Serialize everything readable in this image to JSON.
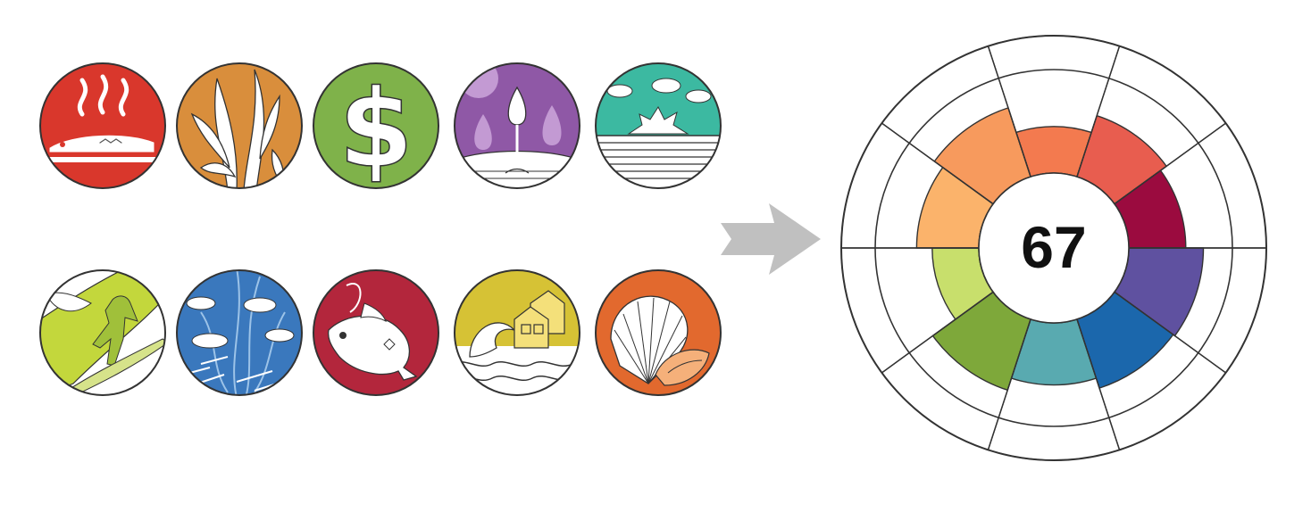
{
  "icons_row1": [
    {
      "name": "food-provision-icon",
      "color": "#d9372c"
    },
    {
      "name": "natural-products-icon",
      "color": "#d98e3c"
    },
    {
      "name": "coastal-economies-icon",
      "color": "#7fb24a"
    },
    {
      "name": "carbon-storage-icon",
      "color": "#8f58a6"
    },
    {
      "name": "clean-waters-icon",
      "color": "#3cb9a1"
    }
  ],
  "icons_row2": [
    {
      "name": "tourism-recreation-icon",
      "color": "#c3d73c"
    },
    {
      "name": "biodiversity-icon",
      "color": "#3a78bd"
    },
    {
      "name": "artisanal-fishing-icon",
      "color": "#b3263c"
    },
    {
      "name": "coastal-protection-icon",
      "color": "#d6c235"
    },
    {
      "name": "sense-of-place-icon",
      "color": "#e2692e"
    }
  ],
  "arrow_color": "#c0c0c0",
  "flower": {
    "score": "67",
    "petals": [
      {
        "color": "#f37a4f",
        "level": 0.45
      },
      {
        "color": "#e85d4f",
        "level": 0.62
      },
      {
        "color": "#9b0b3f",
        "level": 0.55
      },
      {
        "color": "#5f51a0",
        "level": 0.72
      },
      {
        "color": "#1b67ac",
        "level": 0.7
      },
      {
        "color": "#59aab0",
        "level": 0.6
      },
      {
        "color": "#7ea83a",
        "level": 0.72
      },
      {
        "color": "#c8df6c",
        "level": 0.45
      },
      {
        "color": "#fbb36b",
        "level": 0.6
      },
      {
        "color": "#f79a5d",
        "level": 0.7
      }
    ]
  }
}
